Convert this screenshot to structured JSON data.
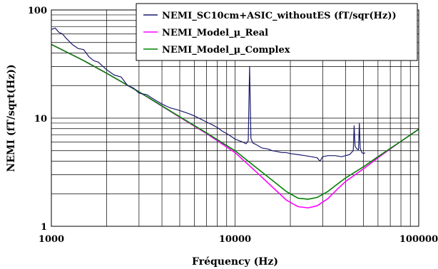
{
  "chart_data": {
    "type": "line",
    "xlabel": "Fréquency (Hz)",
    "ylabel": "NEMI (fT/sqrt(Hz))",
    "x_scale": "log",
    "y_scale": "log",
    "xlim": [
      1000,
      100000
    ],
    "ylim": [
      1,
      100
    ],
    "grid": true,
    "legend_position": "top-right",
    "x_ticks": [
      {
        "value": 1000,
        "label": "1000"
      },
      {
        "value": 10000,
        "label": "10000"
      },
      {
        "value": 100000,
        "label": "100000"
      }
    ],
    "y_ticks": [
      {
        "value": 1,
        "label": "1"
      },
      {
        "value": 10,
        "label": "10"
      },
      {
        "value": 100,
        "label": "100"
      }
    ],
    "series": [
      {
        "name": "NEMI_SC10cm+ASIC_withoutES (fT/sqr(Hz))",
        "color": "#1a1a6e",
        "x": [
          1000,
          1050,
          1100,
          1150,
          1200,
          1300,
          1400,
          1500,
          1600,
          1700,
          1800,
          2000,
          2200,
          2400,
          2600,
          2800,
          3000,
          3300,
          3600,
          4000,
          4400,
          4800,
          5200,
          5600,
          6000,
          6500,
          7000,
          7500,
          8000,
          8500,
          9000,
          9500,
          10000,
          10500,
          11000,
          11500,
          11800,
          12000,
          12200,
          12500,
          13000,
          14000,
          15000,
          16000,
          17000,
          18000,
          19000,
          20000,
          22000,
          24000,
          26000,
          28000,
          29000,
          30000,
          32000,
          35000,
          38000,
          40000,
          42000,
          43000,
          44000,
          44500,
          45000,
          46000,
          47000,
          47500,
          48000,
          49000,
          50000,
          51000
        ],
        "y": [
          66,
          68,
          62,
          60,
          55,
          48,
          44,
          43,
          37,
          34,
          33,
          28,
          25,
          24,
          20,
          19,
          17,
          16.5,
          15,
          13.5,
          12.5,
          12,
          11.5,
          11,
          10.5,
          9.8,
          9.2,
          8.7,
          8.2,
          7.6,
          7.2,
          6.8,
          6.4,
          6.2,
          6.0,
          5.8,
          6.2,
          30,
          6.5,
          5.9,
          5.7,
          5.3,
          5.2,
          5.0,
          4.9,
          4.8,
          4.8,
          4.7,
          4.6,
          4.5,
          4.4,
          4.3,
          4.0,
          4.4,
          4.5,
          4.5,
          4.4,
          4.5,
          4.6,
          4.8,
          5.0,
          8.5,
          5.5,
          5.2,
          5.1,
          9.0,
          5.3,
          4.8,
          4.7,
          4.8
        ]
      },
      {
        "name": "NEMI_Model_µ_Real",
        "color": "#ff00ff",
        "x": [
          1000,
          1500,
          2000,
          3000,
          5000,
          7000,
          10000,
          13000,
          16000,
          19000,
          22000,
          25000,
          28000,
          32000,
          36000,
          40000,
          50000,
          60000,
          70000,
          80000,
          100000
        ],
        "y": [
          48,
          34,
          26,
          17.5,
          10.2,
          7.2,
          4.8,
          3.2,
          2.3,
          1.75,
          1.52,
          1.48,
          1.55,
          1.8,
          2.2,
          2.6,
          3.4,
          4.3,
          5.2,
          6.1,
          7.9
        ]
      },
      {
        "name": "NEMI_Model_µ_Complex",
        "color": "#008000",
        "x": [
          1000,
          1500,
          2000,
          3000,
          5000,
          7000,
          10000,
          13000,
          16000,
          19000,
          22000,
          25000,
          28000,
          32000,
          36000,
          40000,
          50000,
          60000,
          70000,
          80000,
          100000
        ],
        "y": [
          48,
          34,
          26,
          17.5,
          10.3,
          7.3,
          5.0,
          3.5,
          2.65,
          2.1,
          1.82,
          1.78,
          1.85,
          2.1,
          2.45,
          2.8,
          3.55,
          4.4,
          5.25,
          6.1,
          7.9
        ]
      }
    ]
  }
}
